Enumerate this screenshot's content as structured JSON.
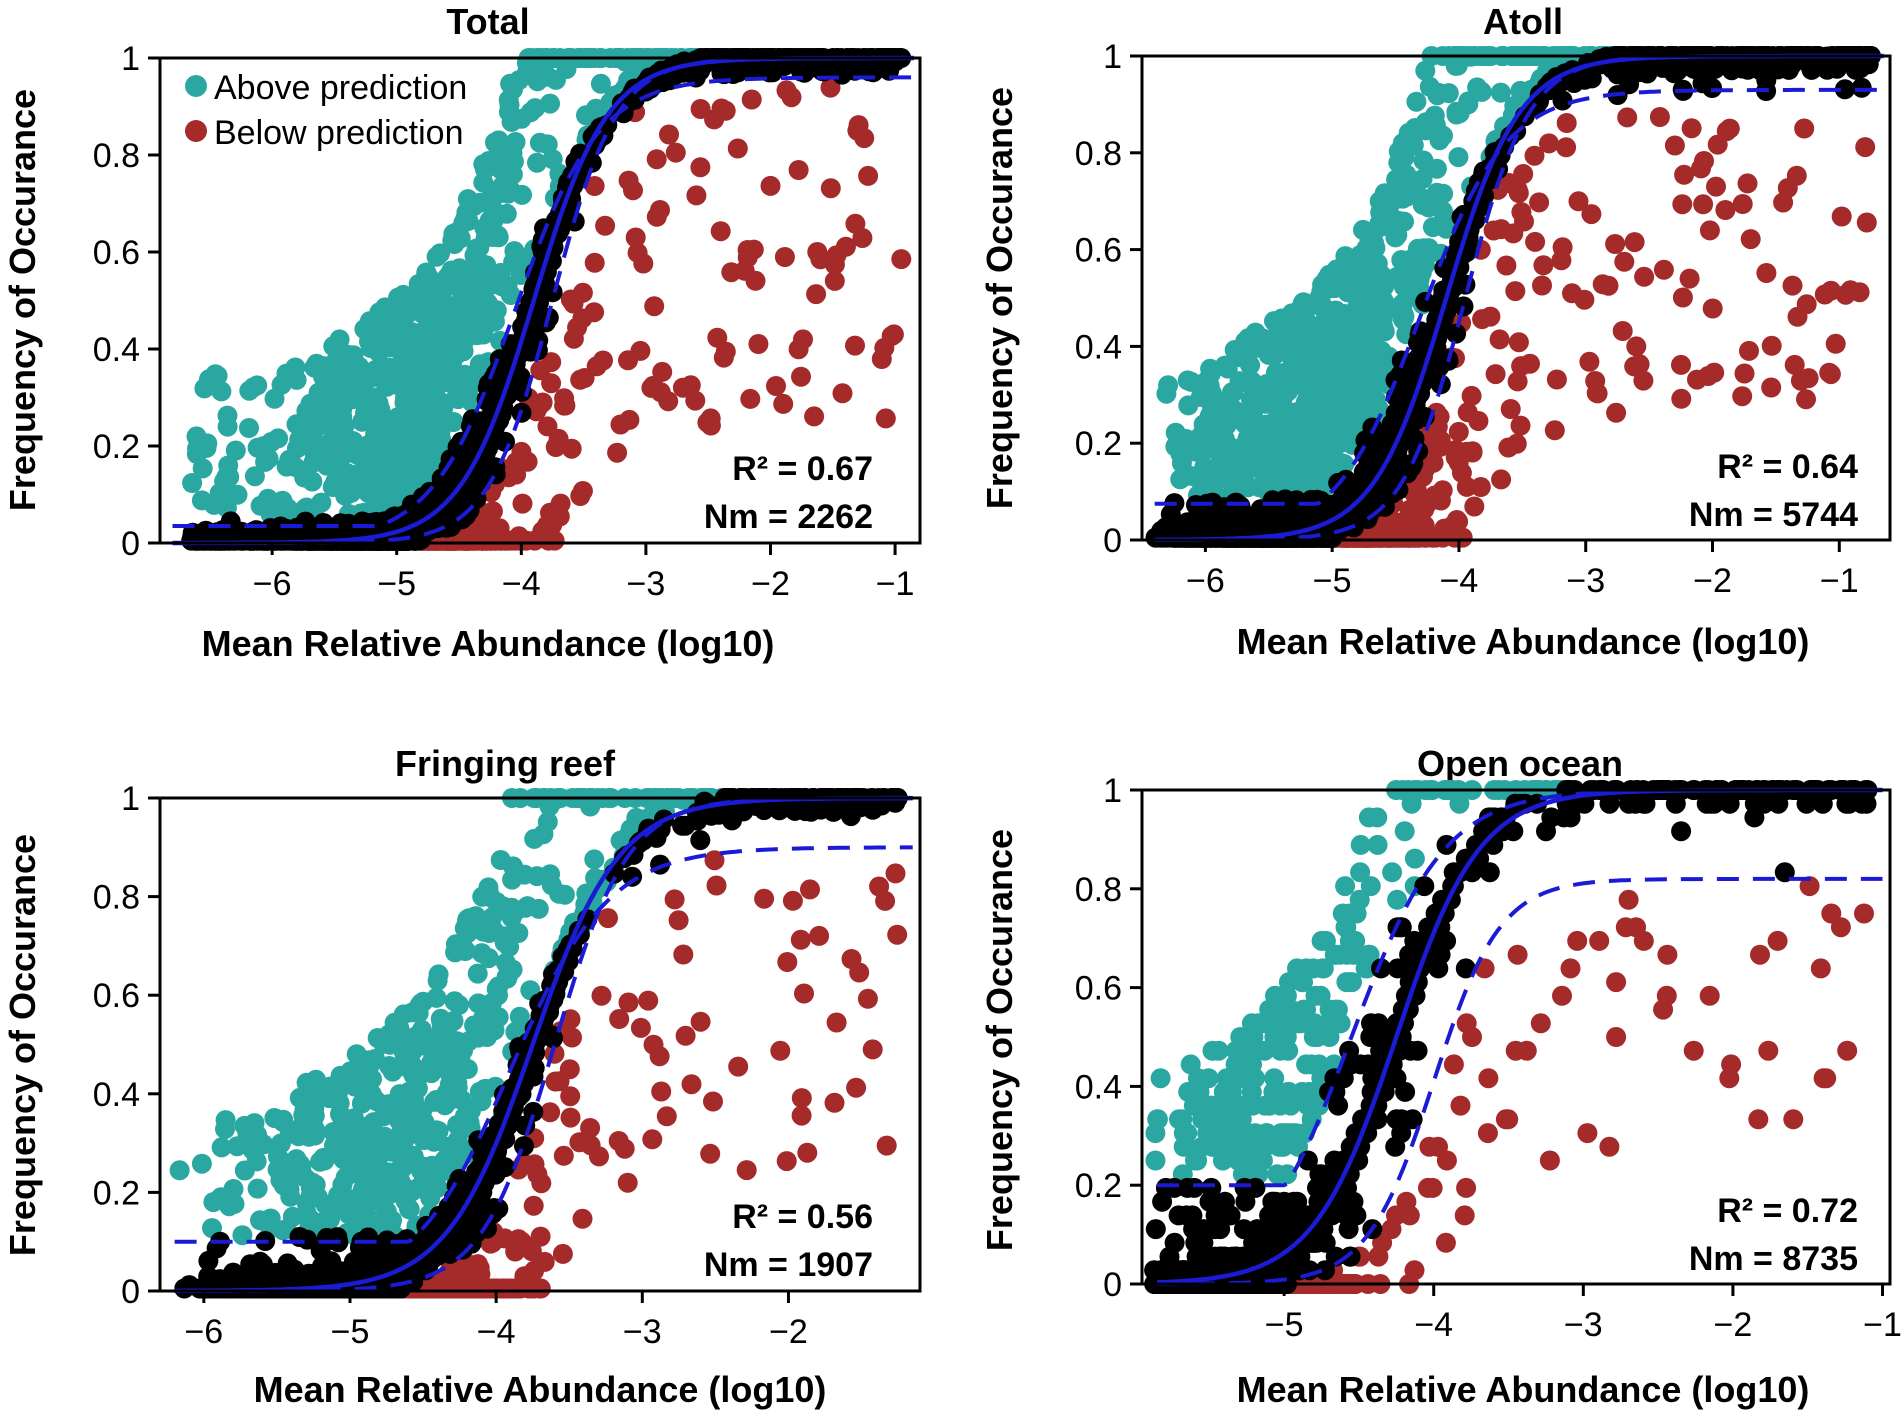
{
  "colors": {
    "above": "#2aa7a1",
    "below": "#a52a2a",
    "neutral": "#000000",
    "fit": "#1b1bd6"
  },
  "legend": {
    "above_label": "Above prediction",
    "below_label": "Below prediction"
  },
  "chart_data": [
    {
      "type": "scatter",
      "title": "Total",
      "xlabel": "Mean Relative Abundance (log10)",
      "ylabel": "Frequency of Occurance",
      "xlim": [
        -6.9,
        -0.8
      ],
      "ylim": [
        0,
        1
      ],
      "xticks": [
        -6,
        -5,
        -4,
        -3,
        -2,
        -1
      ],
      "yticks": [
        0,
        0.2,
        0.4,
        0.6,
        0.8,
        1
      ],
      "xtick_labels": [
        "−6",
        "−5",
        "−4",
        "−3",
        "−2",
        "−1"
      ],
      "ytick_labels": [
        "0",
        "0.2",
        "0.4",
        "0.6",
        "0.8",
        "1"
      ],
      "fit": {
        "m": 1.0,
        "x0": -3.9,
        "k": 3.4
      },
      "ci_upper": {
        "m": 0.96,
        "x0": -4.05,
        "k": 3.0,
        "floor": 0.035
      },
      "ci_lower": {
        "m": 1.0,
        "x0": -3.75,
        "k": 3.9,
        "floor": 0.0
      },
      "r2_label": "R² = 0.67",
      "nm_label": "Nm = 2262",
      "legend": true
    },
    {
      "type": "scatter",
      "title": "Atoll",
      "xlabel": "Mean Relative Abundance (log10)",
      "ylabel": "Frequency of Occurance",
      "xlim": [
        -6.5,
        -0.6
      ],
      "ylim": [
        0,
        1
      ],
      "xticks": [
        -6,
        -5,
        -4,
        -3,
        -2,
        -1
      ],
      "yticks": [
        0,
        0.2,
        0.4,
        0.6,
        0.8,
        1
      ],
      "xtick_labels": [
        "−6",
        "−5",
        "−4",
        "−3",
        "−2",
        "−1"
      ],
      "ytick_labels": [
        "0",
        "0.2",
        "0.4",
        "0.6",
        "0.8",
        "1"
      ],
      "fit": {
        "m": 1.0,
        "x0": -4.1,
        "k": 3.5
      },
      "ci_upper": {
        "m": 0.93,
        "x0": -4.3,
        "k": 3.0,
        "floor": 0.075
      },
      "ci_lower": {
        "m": 1.0,
        "x0": -3.95,
        "k": 4.0,
        "floor": 0.0
      },
      "r2_label": "R² = 0.64",
      "nm_label": "Nm = 5744",
      "legend": false
    },
    {
      "type": "scatter",
      "title": "Fringing reef",
      "xlabel": "Mean Relative Abundance (log10)",
      "ylabel": "Frequency of Occurance",
      "xlim": [
        -6.3,
        -1.1
      ],
      "ylim": [
        0,
        1
      ],
      "xticks": [
        -6,
        -5,
        -4,
        -3,
        -2
      ],
      "yticks": [
        0,
        0.2,
        0.4,
        0.6,
        0.8,
        1
      ],
      "xtick_labels": [
        "−6",
        "−5",
        "−4",
        "−3",
        "−2"
      ],
      "ytick_labels": [
        "0",
        "0.2",
        "0.4",
        "0.6",
        "0.8",
        "1"
      ],
      "fit": {
        "m": 1.0,
        "x0": -3.75,
        "k": 3.4
      },
      "ci_upper": {
        "m": 0.9,
        "x0": -3.9,
        "k": 3.0,
        "floor": 0.1
      },
      "ci_lower": {
        "m": 1.0,
        "x0": -3.6,
        "k": 4.0,
        "floor": 0.0
      },
      "r2_label": "R² = 0.56",
      "nm_label": "Nm = 1907",
      "legend": false
    },
    {
      "type": "scatter",
      "title": "Open ocean",
      "xlabel": "Mean Relative Abundance (log10)",
      "ylabel": "Frequency of Occurance",
      "xlim": [
        -5.95,
        -0.95
      ],
      "ylim": [
        0,
        1
      ],
      "xticks": [
        -5,
        -4,
        -3,
        -2,
        -1
      ],
      "yticks": [
        0,
        0.2,
        0.4,
        0.6,
        0.8,
        1
      ],
      "xtick_labels": [
        "−5",
        "−4",
        "−3",
        "−2",
        "−1"
      ],
      "ytick_labels": [
        "0",
        "0.2",
        "0.4",
        "0.6",
        "0.8",
        "1"
      ],
      "fit": {
        "m": 1.0,
        "x0": -4.25,
        "k": 3.6
      },
      "ci_upper": {
        "m": 1.0,
        "x0": -4.55,
        "k": 3.2,
        "floor": 0.2
      },
      "ci_lower": {
        "m": 0.82,
        "x0": -4.0,
        "k": 4.5,
        "floor": 0.0
      },
      "r2_label": "R² = 0.72",
      "nm_label": "Nm = 8735",
      "legend": false
    }
  ]
}
